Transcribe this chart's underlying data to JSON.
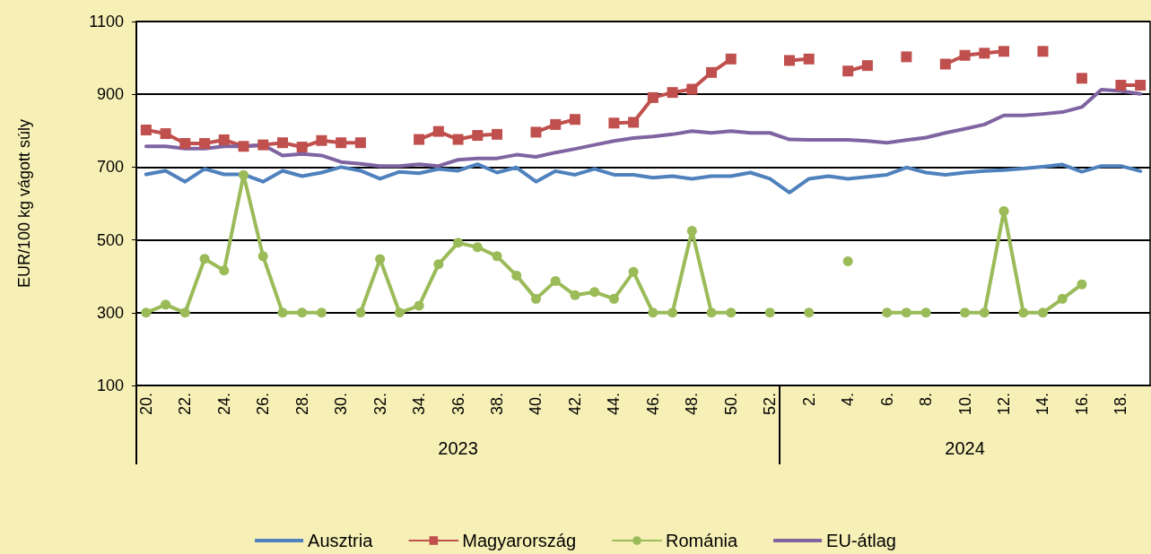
{
  "chart_data": {
    "type": "line",
    "ylabel": "EUR/100 kg vágott súly",
    "categories": [
      "20.",
      null,
      "22.",
      null,
      "24.",
      null,
      "26.",
      null,
      "28.",
      null,
      "30.",
      null,
      "32.",
      null,
      "34.",
      null,
      "36.",
      null,
      "38.",
      null,
      "40.",
      null,
      "42.",
      null,
      "44.",
      null,
      "46.",
      null,
      "48.",
      null,
      "50.",
      null,
      "52.",
      null,
      "2.",
      null,
      "4.",
      null,
      "6.",
      null,
      "8.",
      null,
      "10.",
      null,
      "12.",
      null,
      "14.",
      null,
      "16.",
      null,
      "18.",
      null
    ],
    "annotations": [
      "2023",
      "2024"
    ],
    "ylim": [
      100,
      1100
    ],
    "yticks": [
      100,
      300,
      500,
      700,
      900,
      1100
    ],
    "grid": "y",
    "legend": "bottom",
    "series": [
      {
        "name": "Ausztria",
        "color": "#4f81bd",
        "marker": "none",
        "values": [
          680,
          690,
          660,
          695,
          680,
          680,
          660,
          690,
          675,
          685,
          700,
          690,
          668,
          687,
          683,
          695,
          690,
          708,
          685,
          699,
          660,
          689,
          679,
          695,
          679,
          679,
          671,
          675,
          668,
          675,
          675,
          685,
          668,
          630,
          668,
          675,
          668,
          673,
          679,
          699,
          685,
          679,
          685,
          689,
          692,
          696,
          701,
          707,
          687,
          703,
          703,
          689
        ]
      },
      {
        "name": "Magyarország",
        "color": "#c0504d",
        "marker": "square",
        "values": [
          802,
          792,
          765,
          765,
          775,
          757,
          761,
          767,
          755,
          773,
          767,
          767,
          null,
          null,
          776,
          798,
          776,
          787,
          790,
          null,
          796,
          817,
          831,
          null,
          821,
          823,
          891,
          905,
          914,
          960,
          997,
          null,
          null,
          993,
          997,
          null,
          964,
          979,
          null,
          1003,
          null,
          983,
          1007,
          1013,
          1018,
          null,
          1018,
          null,
          944,
          null,
          925,
          925
        ]
      },
      {
        "name": "Románia",
        "color": "#9bbb59",
        "marker": "circle",
        "values": [
          300,
          322,
          300,
          448,
          416,
          678,
          455,
          300,
          300,
          300,
          null,
          300,
          447,
          300,
          319,
          433,
          492,
          480,
          455,
          402,
          338,
          387,
          348,
          357,
          338,
          412,
          300,
          300,
          525,
          300,
          300,
          null,
          300,
          null,
          300,
          null,
          441,
          null,
          300,
          300,
          300,
          null,
          300,
          300,
          579,
          300,
          300,
          338,
          378,
          null,
          null,
          null
        ]
      },
      {
        "name": "EU-átlag",
        "color": "#8064a2",
        "marker": "none",
        "values": [
          757,
          757,
          751,
          751,
          757,
          757,
          761,
          732,
          736,
          732,
          714,
          709,
          703,
          703,
          708,
          703,
          720,
          724,
          724,
          734,
          728,
          740,
          750,
          761,
          772,
          780,
          784,
          790,
          799,
          794,
          799,
          794,
          794,
          776,
          775,
          775,
          775,
          772,
          767,
          774,
          781,
          794,
          805,
          817,
          842,
          842,
          846,
          851,
          865,
          913,
          909,
          901
        ]
      }
    ]
  }
}
